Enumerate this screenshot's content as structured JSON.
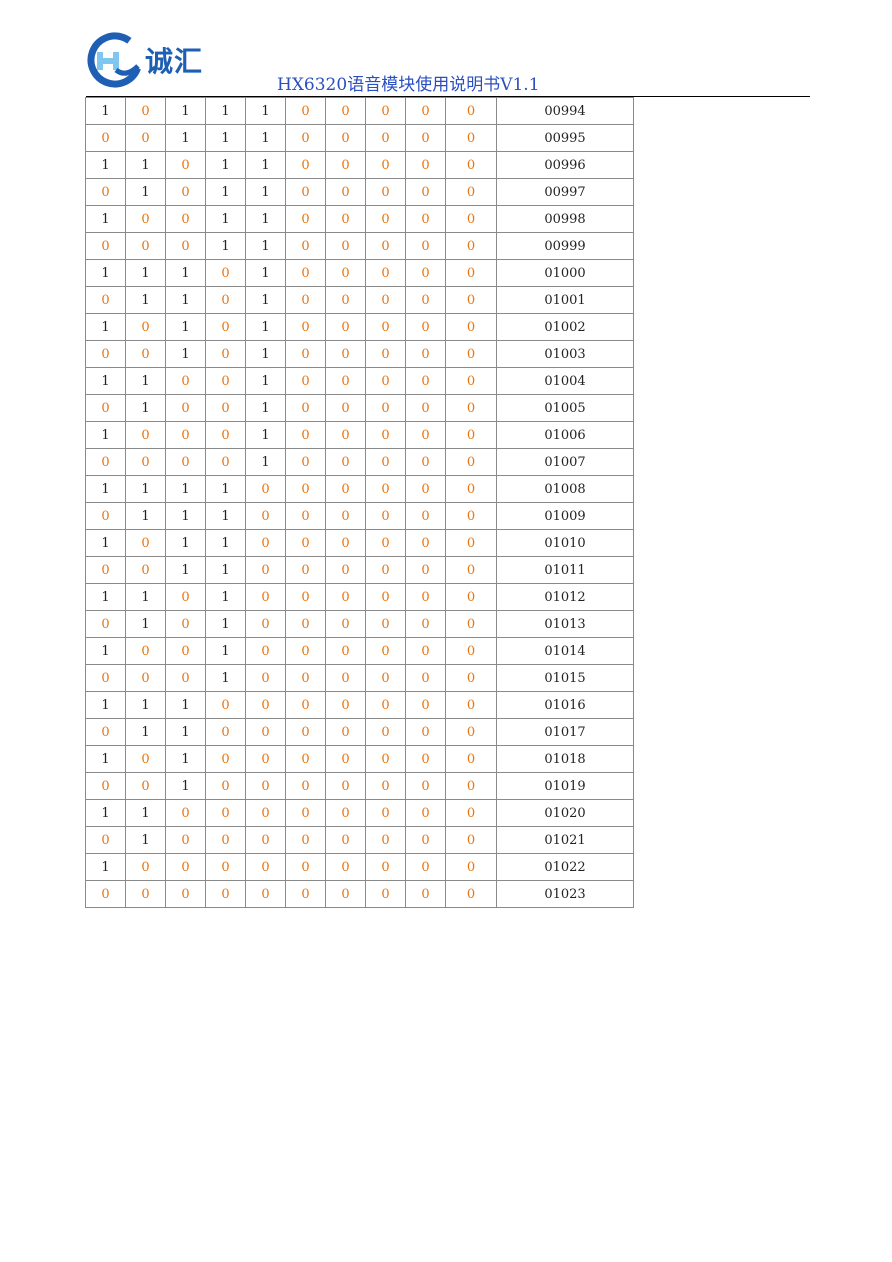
{
  "header": {
    "logo_text": "诚汇",
    "title": "HX6320语音模块使用说明书V1.1"
  },
  "colors": {
    "zero_bit": "#e87512",
    "one_bit": "#222222",
    "title": "#2a4fc0",
    "logo": "#1e5fb4"
  },
  "table": {
    "rows": [
      {
        "bits": [
          "1",
          "0",
          "1",
          "1",
          "1",
          "0",
          "0",
          "0",
          "0",
          "0"
        ],
        "code": "00994"
      },
      {
        "bits": [
          "0",
          "0",
          "1",
          "1",
          "1",
          "0",
          "0",
          "0",
          "0",
          "0"
        ],
        "code": "00995"
      },
      {
        "bits": [
          "1",
          "1",
          "0",
          "1",
          "1",
          "0",
          "0",
          "0",
          "0",
          "0"
        ],
        "code": "00996"
      },
      {
        "bits": [
          "0",
          "1",
          "0",
          "1",
          "1",
          "0",
          "0",
          "0",
          "0",
          "0"
        ],
        "code": "00997"
      },
      {
        "bits": [
          "1",
          "0",
          "0",
          "1",
          "1",
          "0",
          "0",
          "0",
          "0",
          "0"
        ],
        "code": "00998"
      },
      {
        "bits": [
          "0",
          "0",
          "0",
          "1",
          "1",
          "0",
          "0",
          "0",
          "0",
          "0"
        ],
        "code": "00999"
      },
      {
        "bits": [
          "1",
          "1",
          "1",
          "0",
          "1",
          "0",
          "0",
          "0",
          "0",
          "0"
        ],
        "code": "01000"
      },
      {
        "bits": [
          "0",
          "1",
          "1",
          "0",
          "1",
          "0",
          "0",
          "0",
          "0",
          "0"
        ],
        "code": "01001"
      },
      {
        "bits": [
          "1",
          "0",
          "1",
          "0",
          "1",
          "0",
          "0",
          "0",
          "0",
          "0"
        ],
        "code": "01002"
      },
      {
        "bits": [
          "0",
          "0",
          "1",
          "0",
          "1",
          "0",
          "0",
          "0",
          "0",
          "0"
        ],
        "code": "01003"
      },
      {
        "bits": [
          "1",
          "1",
          "0",
          "0",
          "1",
          "0",
          "0",
          "0",
          "0",
          "0"
        ],
        "code": "01004"
      },
      {
        "bits": [
          "0",
          "1",
          "0",
          "0",
          "1",
          "0",
          "0",
          "0",
          "0",
          "0"
        ],
        "code": "01005"
      },
      {
        "bits": [
          "1",
          "0",
          "0",
          "0",
          "1",
          "0",
          "0",
          "0",
          "0",
          "0"
        ],
        "code": "01006"
      },
      {
        "bits": [
          "0",
          "0",
          "0",
          "0",
          "1",
          "0",
          "0",
          "0",
          "0",
          "0"
        ],
        "code": "01007"
      },
      {
        "bits": [
          "1",
          "1",
          "1",
          "1",
          "0",
          "0",
          "0",
          "0",
          "0",
          "0"
        ],
        "code": "01008"
      },
      {
        "bits": [
          "0",
          "1",
          "1",
          "1",
          "0",
          "0",
          "0",
          "0",
          "0",
          "0"
        ],
        "code": "01009"
      },
      {
        "bits": [
          "1",
          "0",
          "1",
          "1",
          "0",
          "0",
          "0",
          "0",
          "0",
          "0"
        ],
        "code": "01010"
      },
      {
        "bits": [
          "0",
          "0",
          "1",
          "1",
          "0",
          "0",
          "0",
          "0",
          "0",
          "0"
        ],
        "code": "01011"
      },
      {
        "bits": [
          "1",
          "1",
          "0",
          "1",
          "0",
          "0",
          "0",
          "0",
          "0",
          "0"
        ],
        "code": "01012"
      },
      {
        "bits": [
          "0",
          "1",
          "0",
          "1",
          "0",
          "0",
          "0",
          "0",
          "0",
          "0"
        ],
        "code": "01013"
      },
      {
        "bits": [
          "1",
          "0",
          "0",
          "1",
          "0",
          "0",
          "0",
          "0",
          "0",
          "0"
        ],
        "code": "01014"
      },
      {
        "bits": [
          "0",
          "0",
          "0",
          "1",
          "0",
          "0",
          "0",
          "0",
          "0",
          "0"
        ],
        "code": "01015"
      },
      {
        "bits": [
          "1",
          "1",
          "1",
          "0",
          "0",
          "0",
          "0",
          "0",
          "0",
          "0"
        ],
        "code": "01016"
      },
      {
        "bits": [
          "0",
          "1",
          "1",
          "0",
          "0",
          "0",
          "0",
          "0",
          "0",
          "0"
        ],
        "code": "01017"
      },
      {
        "bits": [
          "1",
          "0",
          "1",
          "0",
          "0",
          "0",
          "0",
          "0",
          "0",
          "0"
        ],
        "code": "01018"
      },
      {
        "bits": [
          "0",
          "0",
          "1",
          "0",
          "0",
          "0",
          "0",
          "0",
          "0",
          "0"
        ],
        "code": "01019"
      },
      {
        "bits": [
          "1",
          "1",
          "0",
          "0",
          "0",
          "0",
          "0",
          "0",
          "0",
          "0"
        ],
        "code": "01020"
      },
      {
        "bits": [
          "0",
          "1",
          "0",
          "0",
          "0",
          "0",
          "0",
          "0",
          "0",
          "0"
        ],
        "code": "01021"
      },
      {
        "bits": [
          "1",
          "0",
          "0",
          "0",
          "0",
          "0",
          "0",
          "0",
          "0",
          "0"
        ],
        "code": "01022"
      },
      {
        "bits": [
          "0",
          "0",
          "0",
          "0",
          "0",
          "0",
          "0",
          "0",
          "0",
          "0"
        ],
        "code": "01023"
      }
    ]
  }
}
